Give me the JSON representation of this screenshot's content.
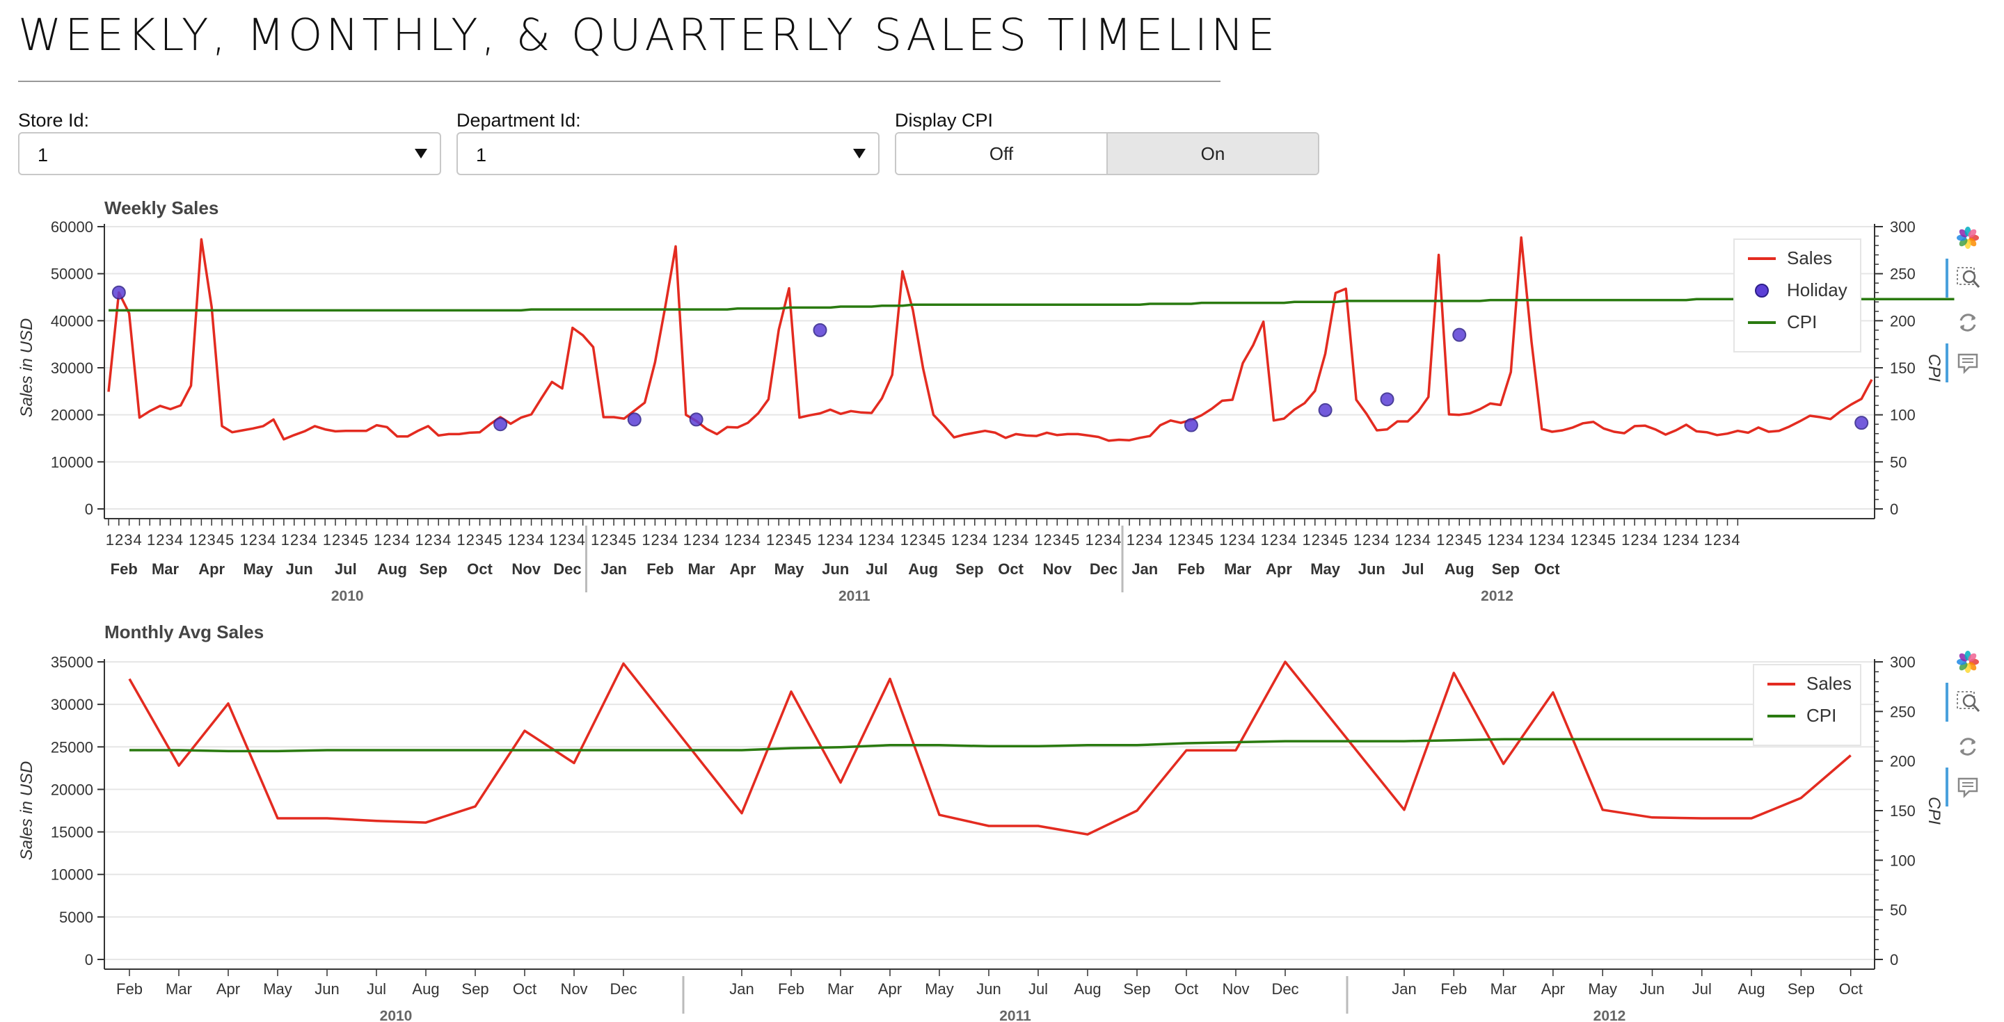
{
  "page": {
    "title": "WEEKLY, MONTHLY, & QUARTERLY SALES TIMELINE"
  },
  "controls": {
    "store": {
      "label": "Store Id:",
      "value": "1"
    },
    "department": {
      "label": "Department Id:",
      "value": "1"
    },
    "cpi": {
      "label": "Display CPI",
      "options": [
        "Off",
        "On"
      ],
      "selected": "On"
    }
  },
  "colors": {
    "sales": "#e32b20",
    "cpi": "#2a7a10",
    "holiday": "#5b3fd6",
    "grid": "#e6e6e6"
  },
  "toolbar": {
    "icons": [
      "bokeh-logo-icon",
      "box-zoom-icon",
      "reset-icon",
      "hover-icon"
    ]
  },
  "chart_data": [
    {
      "type": "line",
      "title": "Weekly Sales",
      "xlabel": "",
      "ylabel": "Sales in USD",
      "y2label": "CPI",
      "ylim": [
        0,
        60000
      ],
      "y2lim": [
        0,
        300
      ],
      "yticks": [
        "60000",
        "50000",
        "40000",
        "30000",
        "20000",
        "10000",
        "0"
      ],
      "y2ticks": [
        "300",
        "250",
        "200",
        "150",
        "100",
        "50",
        "0"
      ],
      "week_labels": [
        "1234",
        "1234",
        "12345",
        "1234",
        "1234",
        "12345",
        "1234",
        "1234",
        "12345",
        "1234",
        "1234",
        "12345",
        "1234",
        "1234",
        "1234",
        "12345",
        "1234",
        "1234",
        "12345",
        "1234",
        "1234",
        "12345",
        "1234",
        "1234",
        "12345",
        "1234",
        "1234",
        "12345",
        "1234",
        "1234",
        "12345",
        "1234",
        "1234",
        "12345",
        "1234",
        "1234",
        "1234"
      ],
      "months": [
        "Feb",
        "Mar",
        "Apr",
        "May",
        "Jun",
        "Jul",
        "Aug",
        "Sep",
        "Oct",
        "Nov",
        "Dec",
        "Jan",
        "Feb",
        "Mar",
        "Apr",
        "May",
        "Jun",
        "Jul",
        "Aug",
        "Sep",
        "Oct",
        "Nov",
        "Dec",
        "Jan",
        "Feb",
        "Mar",
        "Apr",
        "May",
        "Jun",
        "Jul",
        "Aug",
        "Sep",
        "Oct"
      ],
      "years": [
        "2010",
        "2011",
        "2012"
      ],
      "legend": [
        "Sales",
        "Holiday",
        "CPI"
      ],
      "legend_position": "top-right",
      "series": [
        {
          "name": "Sales",
          "values": [
            24900,
            46000,
            41600,
            19400,
            20800,
            21900,
            21200,
            22000,
            26200,
            57300,
            42900,
            17600,
            16300,
            16700,
            17100,
            17600,
            19000,
            14800,
            15700,
            16500,
            17600,
            16900,
            16500,
            16600,
            16600,
            16600,
            17800,
            17400,
            15400,
            15400,
            16600,
            17600,
            15600,
            15900,
            15900,
            16200,
            16300,
            18000,
            19500,
            18100,
            19400,
            20100,
            23600,
            27000,
            25600,
            38500,
            36900,
            34400,
            19500,
            19500,
            19200,
            20900,
            22600,
            31200,
            43100,
            55800,
            20000,
            18700,
            17000,
            15900,
            17400,
            17300,
            18300,
            20300,
            23300,
            38100,
            46900,
            19400,
            19900,
            20300,
            21100,
            20200,
            20800,
            20500,
            20400,
            23500,
            28500,
            50500,
            42300,
            29800,
            20000,
            17700,
            15200,
            15800,
            16200,
            16600,
            16200,
            15100,
            15900,
            15600,
            15500,
            16200,
            15700,
            15900,
            15900,
            15600,
            15300,
            14500,
            14700,
            14600,
            15100,
            15500,
            17800,
            18800,
            18300,
            18900,
            19900,
            21300,
            23000,
            23200,
            31000,
            34800,
            39800,
            18800,
            19200,
            21100,
            22500,
            25100,
            33000,
            45900,
            46800,
            23200,
            20200,
            16700,
            16900,
            18600,
            18600,
            20700,
            23800,
            54000,
            20100,
            20000,
            20300,
            21200,
            22400,
            22100,
            29100,
            57700,
            35500,
            17000,
            16400,
            16700,
            17300,
            18200,
            18500,
            17100,
            16400,
            16100,
            17600,
            17700,
            16900,
            15800,
            16700,
            17900,
            16500,
            16300,
            15700,
            16000,
            16600,
            16200,
            17300,
            16400,
            16600,
            17500,
            18600,
            19800,
            19500,
            19100,
            20800,
            22200,
            23400,
            27500
          ]
        },
        {
          "name": "Holiday",
          "points": [
            [
              1,
              46000
            ],
            [
              38,
              18000
            ],
            [
              51,
              19000
            ],
            [
              57,
              19000
            ],
            [
              69,
              38000
            ],
            [
              105,
              17800
            ],
            [
              118,
              21000
            ],
            [
              124,
              23300
            ],
            [
              131,
              37000
            ],
            [
              170,
              18300
            ]
          ]
        },
        {
          "name": "CPI",
          "values": [
            211,
            211,
            211,
            211,
            211,
            211,
            211,
            211,
            211,
            211,
            211,
            211,
            211,
            211,
            211,
            211,
            211,
            211,
            211,
            211,
            211,
            211,
            211,
            211,
            211,
            211,
            211,
            211,
            211,
            211,
            211,
            211,
            211,
            211,
            211,
            211,
            211,
            211,
            211,
            211,
            211,
            212,
            212,
            212,
            212,
            212,
            212,
            212,
            212,
            212,
            212,
            212,
            212,
            212,
            212,
            212,
            212,
            212,
            212,
            212,
            212,
            213,
            213,
            213,
            213,
            213,
            214,
            214,
            214,
            214,
            214,
            215,
            215,
            215,
            215,
            216,
            216,
            216,
            217,
            217,
            217,
            217,
            217,
            217,
            217,
            217,
            217,
            217,
            217,
            217,
            217,
            217,
            217,
            217,
            217,
            217,
            217,
            217,
            217,
            217,
            217,
            218,
            218,
            218,
            218,
            218,
            219,
            219,
            219,
            219,
            219,
            219,
            219,
            219,
            219,
            220,
            220,
            220,
            220,
            220,
            221,
            221,
            221,
            221,
            221,
            221,
            221,
            221,
            221,
            221,
            221,
            221,
            221,
            221,
            222,
            222,
            222,
            222,
            222,
            222,
            222,
            222,
            222,
            222,
            222,
            222,
            222,
            222,
            222,
            222,
            222,
            222,
            222,
            222,
            223,
            223,
            223,
            223,
            223,
            223,
            223,
            223,
            223,
            223,
            223,
            223,
            223,
            223,
            223,
            223,
            223,
            223,
            223,
            223,
            223,
            223,
            223,
            223,
            223,
            223
          ]
        }
      ]
    },
    {
      "type": "line",
      "title": "Monthly Avg Sales",
      "xlabel": "",
      "ylabel": "Sales in USD",
      "y2label": "CPI",
      "ylim": [
        0,
        35000
      ],
      "y2lim": [
        0,
        300
      ],
      "yticks": [
        "35000",
        "30000",
        "25000",
        "20000",
        "15000",
        "10000",
        "5000",
        "0"
      ],
      "y2ticks": [
        "300",
        "250",
        "200",
        "150",
        "100",
        "50",
        "0"
      ],
      "months": [
        "Feb",
        "Mar",
        "Apr",
        "May",
        "Jun",
        "Jul",
        "Aug",
        "Sep",
        "Oct",
        "Nov",
        "Dec",
        "Jan",
        "Feb",
        "Mar",
        "Apr",
        "May",
        "Jun",
        "Jul",
        "Aug",
        "Sep",
        "Oct",
        "Nov",
        "Dec",
        "Jan",
        "Feb",
        "Mar",
        "Apr",
        "May",
        "Jun",
        "Jul",
        "Aug",
        "Sep",
        "Oct"
      ],
      "years": [
        "2010",
        "2011",
        "2012"
      ],
      "legend": [
        "Sales",
        "CPI"
      ],
      "legend_position": "top-right",
      "series": [
        {
          "name": "Sales",
          "values": [
            33000,
            22800,
            30100,
            16600,
            16600,
            16300,
            16100,
            18000,
            26900,
            23100,
            34800,
            17200,
            31500,
            20800,
            33000,
            17000,
            15700,
            15700,
            14700,
            17500,
            24600,
            24600,
            35000,
            17600,
            33700,
            23000,
            31400,
            17600,
            16700,
            16600,
            16600,
            19000,
            24000
          ]
        },
        {
          "name": "CPI",
          "values": [
            211,
            211,
            210,
            210,
            211,
            211,
            211,
            211,
            211,
            211,
            211,
            211,
            213,
            214,
            216,
            216,
            215,
            215,
            216,
            216,
            218,
            219,
            220,
            220,
            221,
            222,
            222,
            222,
            222,
            222,
            222,
            222,
            222
          ]
        }
      ]
    }
  ]
}
